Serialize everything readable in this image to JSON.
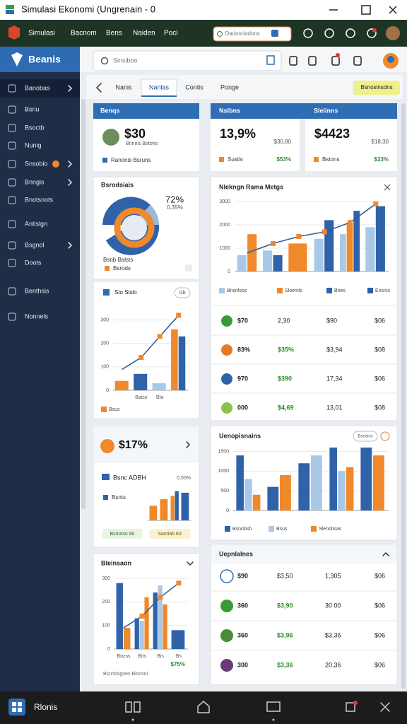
{
  "window": {
    "title": "Simulasi Ekonomi (Ungrenain - 0"
  },
  "toolbar": {
    "menu": [
      "Simulasi",
      "Bacnom",
      "Bens",
      "Naiden",
      "Poci"
    ],
    "search": "Oadosriadons"
  },
  "sidebar": {
    "title": "Beanis",
    "items": [
      "Banobas",
      "Bsnu",
      "Bsoctb",
      "Nunig",
      "Snsobio",
      "Bnngis",
      "Bnotsnots",
      "Antislgn",
      "Bsgnol",
      "Doots",
      "Benthsis",
      "Nonnels"
    ]
  },
  "topbar": {
    "search": "Sinsiboo"
  },
  "tabs": {
    "items": [
      "Nanis",
      "Nanlas",
      "Contis",
      "Ponge"
    ],
    "active": 1,
    "action": "Bsnoslnsdns"
  },
  "summary": {
    "left_header": "Benqs",
    "right_headers": [
      "Nslbns",
      "Sleiinns"
    ],
    "cards": [
      {
        "value": "$30",
        "sub": "Bnnnis Botoho",
        "note": "Ranonis Bsruns"
      },
      {
        "value": "13,9%",
        "aux": "$30,80",
        "note": "Sustis",
        "change": "$53%"
      },
      {
        "value": "$4423",
        "aux": "$18,30",
        "note": "Bstons",
        "change": "$33%"
      }
    ]
  },
  "breakdown": {
    "title": "Bsrodsiais",
    "kpi": "72%",
    "kpi_sub": "0,35%",
    "caption": "Bsnb Balsts",
    "item": "Bsrods"
  },
  "mini_chart": {
    "title": "Sto Slslo",
    "badge": "Gb",
    "chart": {
      "type": "bar",
      "ylim": [
        0,
        350
      ],
      "yticks": [
        0,
        100,
        200,
        300
      ],
      "categories": [
        null,
        "Baiss",
        "Bto",
        null
      ],
      "marker_color": "#f0892a",
      "series": [
        {
          "name": "Bsus",
          "color": "#f0892a",
          "values": [
            40,
            null,
            null,
            260
          ]
        },
        {
          "color": "#2f62a8",
          "values": [
            null,
            70,
            null,
            230
          ]
        },
        {
          "color": "#a9c8e8",
          "values": [
            null,
            null,
            30,
            null
          ]
        },
        {
          "color": "#2f5fa0",
          "type": "line",
          "values": [
            90,
            140,
            230,
            320
          ]
        }
      ]
    }
  },
  "main_chart": {
    "title": "Nlekngn Rama Metgs",
    "chart": {
      "type": "bar",
      "ylim": [
        0,
        3000
      ],
      "yticks": [
        0,
        1000,
        2000,
        3000
      ],
      "marker_color": "#f0892a",
      "series": [
        {
          "name": "Bnsnlsos",
          "color": "#a9c8e8",
          "values": [
            700,
            900,
            null,
            1400,
            1600,
            1900
          ]
        },
        {
          "name": "Sloemls",
          "color": "#f0892a",
          "values": [
            1600,
            null,
            1200,
            null,
            2100,
            null
          ]
        },
        {
          "name": "Bnes",
          "color": "#2f62a8",
          "values": [
            null,
            700,
            null,
            2200,
            2600,
            2800
          ]
        },
        {
          "name": "Ensnis",
          "color": "#2f5fa0",
          "type": "line",
          "values": [
            800,
            1200,
            1500,
            1700,
            2100,
            2900
          ]
        }
      ]
    }
  },
  "main_table": {
    "rows": [
      [
        "$70",
        "2,30",
        "$90",
        "$06"
      ],
      [
        "83%",
        "$35%",
        "$3,94",
        "$08"
      ],
      [
        "970",
        "$390",
        "17,34",
        "$06"
      ],
      [
        "000",
        "$4,69",
        "13,01",
        "$08"
      ]
    ]
  },
  "highlight": {
    "value": "$17%",
    "row_title": "Bsnc ADBH",
    "row_value": "0,50%",
    "item": "Bsnts",
    "badges": [
      "Bsnotso 80",
      "Santiab 83"
    ],
    "chart": {
      "type": "bar",
      "ylim": [
        0,
        100
      ],
      "series": [
        {
          "color": "#f0892a",
          "values": [
            45,
            65,
            75,
            null
          ]
        },
        {
          "color": "#2f62a8",
          "values": [
            null,
            null,
            90,
            85
          ]
        }
      ]
    }
  },
  "mid_chart": {
    "title": "Uenopisnains",
    "badge": "Bsnoins",
    "chart": {
      "type": "bar",
      "ylim": [
        0,
        1600
      ],
      "yticks": [
        0,
        500,
        1000,
        1500
      ],
      "series": [
        {
          "name": "Bsnobsh",
          "color": "#2f62a8",
          "values": [
            1400,
            600,
            1200,
            1600,
            1600
          ]
        },
        {
          "name": "Bsus",
          "color": "#a9c8e8",
          "values": [
            800,
            null,
            1400,
            1000,
            null
          ]
        },
        {
          "name": "Slenoltsas",
          "color": "#f0892a",
          "values": [
            400,
            900,
            null,
            1100,
            1400
          ]
        }
      ]
    }
  },
  "bottom_chart": {
    "title": "Bleinsaon",
    "footer": "$75%",
    "caption": "Bsnnbsgnes Bisnsoi",
    "chart": {
      "type": "bar",
      "ylim": [
        0,
        300
      ],
      "yticks": [
        0,
        100,
        200,
        300
      ],
      "categories": [
        "Bnzss",
        "Bits",
        "Bis",
        "Bs"
      ],
      "marker_color": "#f0892a",
      "series": [
        {
          "color": "#2f62a8",
          "values": [
            280,
            130,
            240,
            80
          ]
        },
        {
          "color": "#a9c8e8",
          "values": [
            null,
            120,
            270,
            null
          ]
        },
        {
          "color": "#f0892a",
          "values": [
            90,
            220,
            190,
            null
          ]
        },
        {
          "color": "#2f5fa0",
          "type": "line",
          "values": [
            90,
            140,
            220,
            280
          ]
        }
      ]
    }
  },
  "list": {
    "title": "Uepnlalnes",
    "rows": [
      [
        "$90",
        "$3,50",
        "1,305",
        "$06"
      ],
      [
        "360",
        "$3,90",
        "30 00",
        "$06"
      ],
      [
        "360",
        "$3,96",
        "$3,36",
        "$06"
      ],
      [
        "300",
        "$3,36",
        "20,36",
        "$06"
      ]
    ]
  },
  "bottombar": {
    "title": "Rlonis"
  }
}
